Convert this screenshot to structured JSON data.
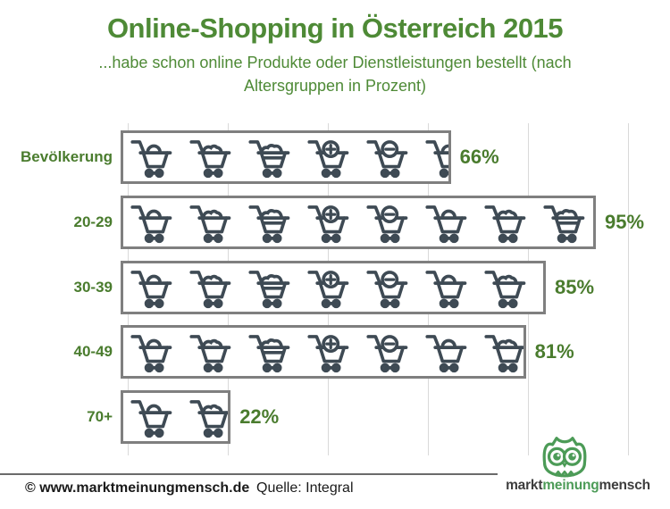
{
  "header": {
    "title": "Online-Shopping in Österreich 2015",
    "subtitle_lines": [
      "...habe schon online Produkte oder Dienstleistungen bestellt (nach",
      "Altersgruppen in Prozent)"
    ]
  },
  "chart_data": {
    "type": "bar",
    "style": "pictogram-bar-with-shopping-cart-icons",
    "categories": [
      "Bevölkerung",
      "20-29",
      "30-39",
      "40-49",
      "70+"
    ],
    "values": [
      66,
      95,
      85,
      81,
      22
    ],
    "value_labels": [
      "66%",
      "95%",
      "85%",
      "81%",
      "22%"
    ],
    "unit": "%",
    "xlabel": "",
    "ylabel": "",
    "xlim": [
      0,
      100
    ],
    "gridline_step": 20,
    "grid": true,
    "legend": false,
    "icon": "shopping-cart",
    "icon_variants_cycle": [
      "cart-lock-icon",
      "cart-items-icon",
      "cart-full-icon",
      "cart-plus-icon",
      "cart-minus-icon"
    ]
  },
  "footer": {
    "copyright": "© www.marktmeinungmensch.de",
    "source": "Quelle: Integral"
  },
  "logo": {
    "words": [
      {
        "text": "markt",
        "color": "#3d3d3d"
      },
      {
        "text": "meinung",
        "color": "#4c9b57"
      },
      {
        "text": "mensch",
        "color": "#3d3d3d"
      }
    ]
  },
  "colors": {
    "title_green": "#4e8a36",
    "label_green": "#4a7c2e",
    "cart": "#3e4a54",
    "bar_border": "#7f7f7f",
    "gridline": "#d9d9d9",
    "logo_green": "#4c9b57",
    "footer_text": "#1a1a1a"
  }
}
